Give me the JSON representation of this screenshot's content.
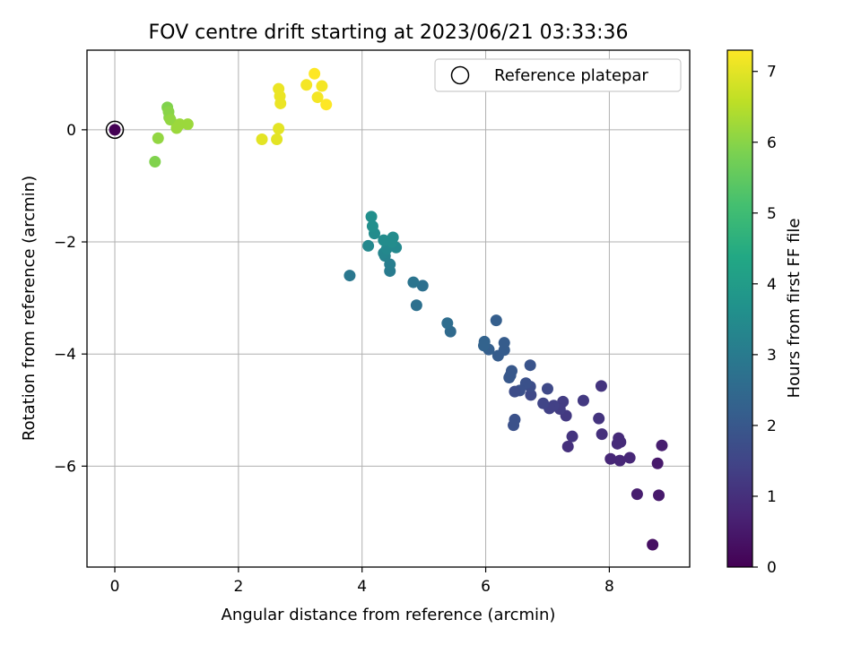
{
  "chart_data": {
    "type": "scatter",
    "title": "FOV centre drift starting at 2023/06/21 03:33:36",
    "xlabel": "Angular distance from reference (arcmin)",
    "ylabel": "Rotation from reference (arcmin)",
    "xlim": [
      -0.45,
      9.3
    ],
    "ylim": [
      -7.8,
      1.42
    ],
    "xticks": [
      0,
      2,
      4,
      6,
      8
    ],
    "xtick_labels": [
      "0",
      "2",
      "4",
      "6",
      "8"
    ],
    "yticks": [
      0,
      -2,
      -4,
      -6
    ],
    "ytick_labels": [
      "0",
      "−2",
      "−4",
      "−6"
    ],
    "grid": true,
    "legend": {
      "placement": "top-right",
      "entries": [
        "Reference platepar"
      ]
    },
    "colorbar": {
      "label": "Hours from first FF file",
      "colormap": "viridis",
      "range": [
        0,
        7.3
      ],
      "ticks": [
        0,
        1,
        2,
        3,
        4,
        5,
        6,
        7
      ],
      "tick_labels": [
        "0",
        "1",
        "2",
        "3",
        "4",
        "5",
        "6",
        "7"
      ]
    },
    "reference_point": {
      "x": 0,
      "y": 0,
      "hours": 0
    },
    "points": [
      {
        "x": 8.7,
        "y": -7.4,
        "h": 0.3
      },
      {
        "x": 8.8,
        "y": -6.52,
        "h": 0.5
      },
      {
        "x": 8.45,
        "y": -6.5,
        "h": 0.6
      },
      {
        "x": 8.78,
        "y": -5.95,
        "h": 0.5
      },
      {
        "x": 8.85,
        "y": -5.63,
        "h": 0.6
      },
      {
        "x": 8.33,
        "y": -5.85,
        "h": 0.8
      },
      {
        "x": 8.17,
        "y": -5.9,
        "h": 0.8
      },
      {
        "x": 8.02,
        "y": -5.87,
        "h": 0.8
      },
      {
        "x": 8.15,
        "y": -5.5,
        "h": 0.9
      },
      {
        "x": 8.18,
        "y": -5.57,
        "h": 0.9
      },
      {
        "x": 8.13,
        "y": -5.6,
        "h": 0.9
      },
      {
        "x": 7.88,
        "y": -5.43,
        "h": 1.0
      },
      {
        "x": 7.83,
        "y": -5.15,
        "h": 1.1
      },
      {
        "x": 7.87,
        "y": -4.57,
        "h": 1.1
      },
      {
        "x": 7.58,
        "y": -4.83,
        "h": 1.2
      },
      {
        "x": 7.4,
        "y": -5.47,
        "h": 1.1
      },
      {
        "x": 7.33,
        "y": -5.65,
        "h": 1.0
      },
      {
        "x": 7.3,
        "y": -5.1,
        "h": 1.2
      },
      {
        "x": 7.25,
        "y": -4.85,
        "h": 1.3
      },
      {
        "x": 7.2,
        "y": -4.98,
        "h": 1.3
      },
      {
        "x": 7.1,
        "y": -4.92,
        "h": 1.4
      },
      {
        "x": 7.03,
        "y": -4.97,
        "h": 1.4
      },
      {
        "x": 6.93,
        "y": -4.88,
        "h": 1.5
      },
      {
        "x": 7.0,
        "y": -4.62,
        "h": 1.6
      },
      {
        "x": 6.73,
        "y": -4.73,
        "h": 1.6
      },
      {
        "x": 6.72,
        "y": -4.58,
        "h": 1.7
      },
      {
        "x": 6.65,
        "y": -4.52,
        "h": 1.8
      },
      {
        "x": 6.72,
        "y": -4.2,
        "h": 1.9
      },
      {
        "x": 6.55,
        "y": -4.65,
        "h": 1.8
      },
      {
        "x": 6.47,
        "y": -4.67,
        "h": 1.7
      },
      {
        "x": 6.47,
        "y": -5.17,
        "h": 1.8
      },
      {
        "x": 6.45,
        "y": -5.27,
        "h": 1.8
      },
      {
        "x": 6.42,
        "y": -4.3,
        "h": 2.0
      },
      {
        "x": 6.4,
        "y": -4.38,
        "h": 2.0
      },
      {
        "x": 6.38,
        "y": -4.42,
        "h": 2.0
      },
      {
        "x": 6.3,
        "y": -3.8,
        "h": 2.1
      },
      {
        "x": 6.3,
        "y": -3.93,
        "h": 2.1
      },
      {
        "x": 6.2,
        "y": -4.03,
        "h": 2.1
      },
      {
        "x": 6.17,
        "y": -3.4,
        "h": 2.2
      },
      {
        "x": 6.05,
        "y": -3.92,
        "h": 2.2
      },
      {
        "x": 5.98,
        "y": -3.78,
        "h": 2.3
      },
      {
        "x": 5.97,
        "y": -3.85,
        "h": 2.3
      },
      {
        "x": 5.43,
        "y": -3.6,
        "h": 2.5
      },
      {
        "x": 5.38,
        "y": -3.45,
        "h": 2.6
      },
      {
        "x": 4.98,
        "y": -2.78,
        "h": 2.7
      },
      {
        "x": 4.88,
        "y": -3.13,
        "h": 2.7
      },
      {
        "x": 4.83,
        "y": -2.72,
        "h": 2.8
      },
      {
        "x": 3.8,
        "y": -2.6,
        "h": 2.9
      },
      {
        "x": 4.45,
        "y": -2.52,
        "h": 3.0
      },
      {
        "x": 4.45,
        "y": -2.4,
        "h": 3.1
      },
      {
        "x": 4.37,
        "y": -2.25,
        "h": 3.2
      },
      {
        "x": 4.35,
        "y": -2.2,
        "h": 3.3
      },
      {
        "x": 4.4,
        "y": -2.12,
        "h": 3.4
      },
      {
        "x": 4.55,
        "y": -2.1,
        "h": 3.4
      },
      {
        "x": 4.1,
        "y": -2.07,
        "h": 3.4
      },
      {
        "x": 4.48,
        "y": -2.0,
        "h": 3.5
      },
      {
        "x": 4.5,
        "y": -1.92,
        "h": 3.5
      },
      {
        "x": 4.35,
        "y": -1.97,
        "h": 3.5
      },
      {
        "x": 4.2,
        "y": -1.85,
        "h": 3.5
      },
      {
        "x": 4.17,
        "y": -1.72,
        "h": 3.6
      },
      {
        "x": 4.15,
        "y": -1.55,
        "h": 3.6
      },
      {
        "x": 0.65,
        "y": -0.57,
        "h": 5.9
      },
      {
        "x": 0.7,
        "y": -0.15,
        "h": 6.1
      },
      {
        "x": 0.85,
        "y": 0.4,
        "h": 5.9
      },
      {
        "x": 0.87,
        "y": 0.32,
        "h": 6.0
      },
      {
        "x": 0.88,
        "y": 0.22,
        "h": 6.0
      },
      {
        "x": 0.9,
        "y": 0.18,
        "h": 6.1
      },
      {
        "x": 1.0,
        "y": 0.03,
        "h": 6.2
      },
      {
        "x": 1.05,
        "y": 0.1,
        "h": 6.2
      },
      {
        "x": 1.18,
        "y": 0.1,
        "h": 6.2
      },
      {
        "x": 2.38,
        "y": -0.17,
        "h": 7.0
      },
      {
        "x": 2.62,
        "y": -0.17,
        "h": 7.0
      },
      {
        "x": 2.65,
        "y": 0.02,
        "h": 7.0
      },
      {
        "x": 2.65,
        "y": 0.73,
        "h": 7.1
      },
      {
        "x": 2.67,
        "y": 0.6,
        "h": 7.1
      },
      {
        "x": 2.68,
        "y": 0.47,
        "h": 7.1
      },
      {
        "x": 3.1,
        "y": 0.8,
        "h": 7.2
      },
      {
        "x": 3.23,
        "y": 1.0,
        "h": 7.3
      },
      {
        "x": 3.28,
        "y": 0.58,
        "h": 7.2
      },
      {
        "x": 3.35,
        "y": 0.78,
        "h": 7.2
      },
      {
        "x": 3.42,
        "y": 0.45,
        "h": 7.3
      }
    ]
  }
}
